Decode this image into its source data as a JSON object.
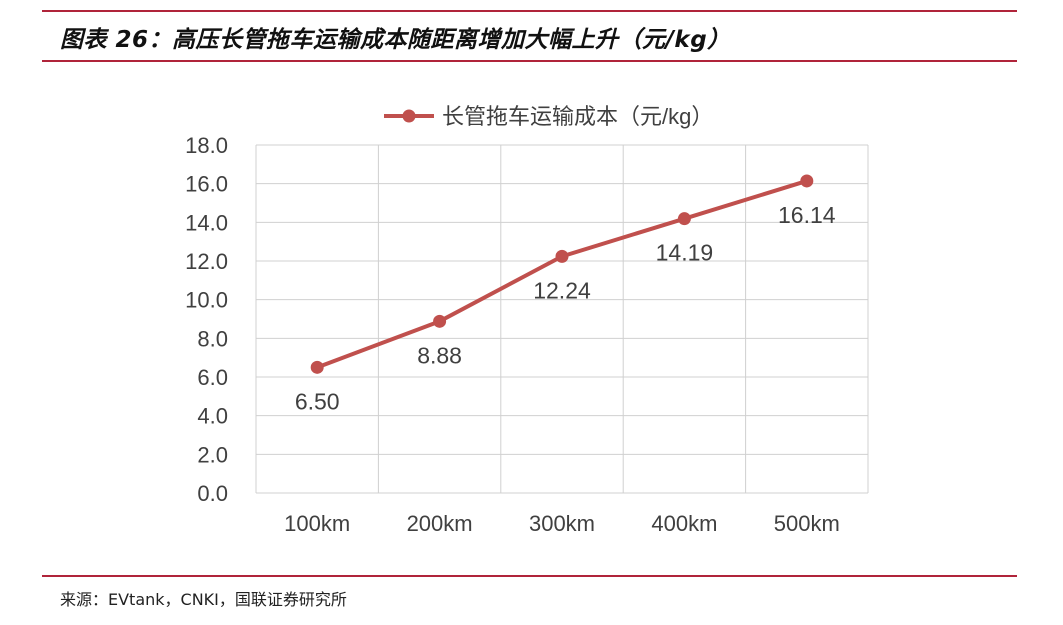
{
  "header": {
    "title": "图表 26：高压长管拖车运输成本随距离增加大幅上升（元/kg）"
  },
  "footer": {
    "source": "来源：EVtank，CNKI，国联证券研究所"
  },
  "colors": {
    "accent_rule": "#b0243a",
    "series_line": "#c0504d",
    "grid": "#d0d0d0",
    "text": "#404040"
  },
  "chart_data": {
    "type": "line",
    "title": "",
    "xlabel": "",
    "ylabel": "",
    "categories": [
      "100km",
      "200km",
      "300km",
      "400km",
      "500km"
    ],
    "series": [
      {
        "name": "长管拖车运输成本（元/kg）",
        "values": [
          6.5,
          8.88,
          12.24,
          14.19,
          16.14
        ],
        "labels": [
          "6.50",
          "8.88",
          "12.24",
          "14.19",
          "16.14"
        ]
      }
    ],
    "ylim": [
      0,
      18
    ],
    "yticks": [
      "0.0",
      "2.0",
      "4.0",
      "6.0",
      "8.0",
      "10.0",
      "12.0",
      "14.0",
      "16.0",
      "18.0"
    ],
    "grid": true,
    "legend_position": "top-center",
    "marker": "circle"
  }
}
